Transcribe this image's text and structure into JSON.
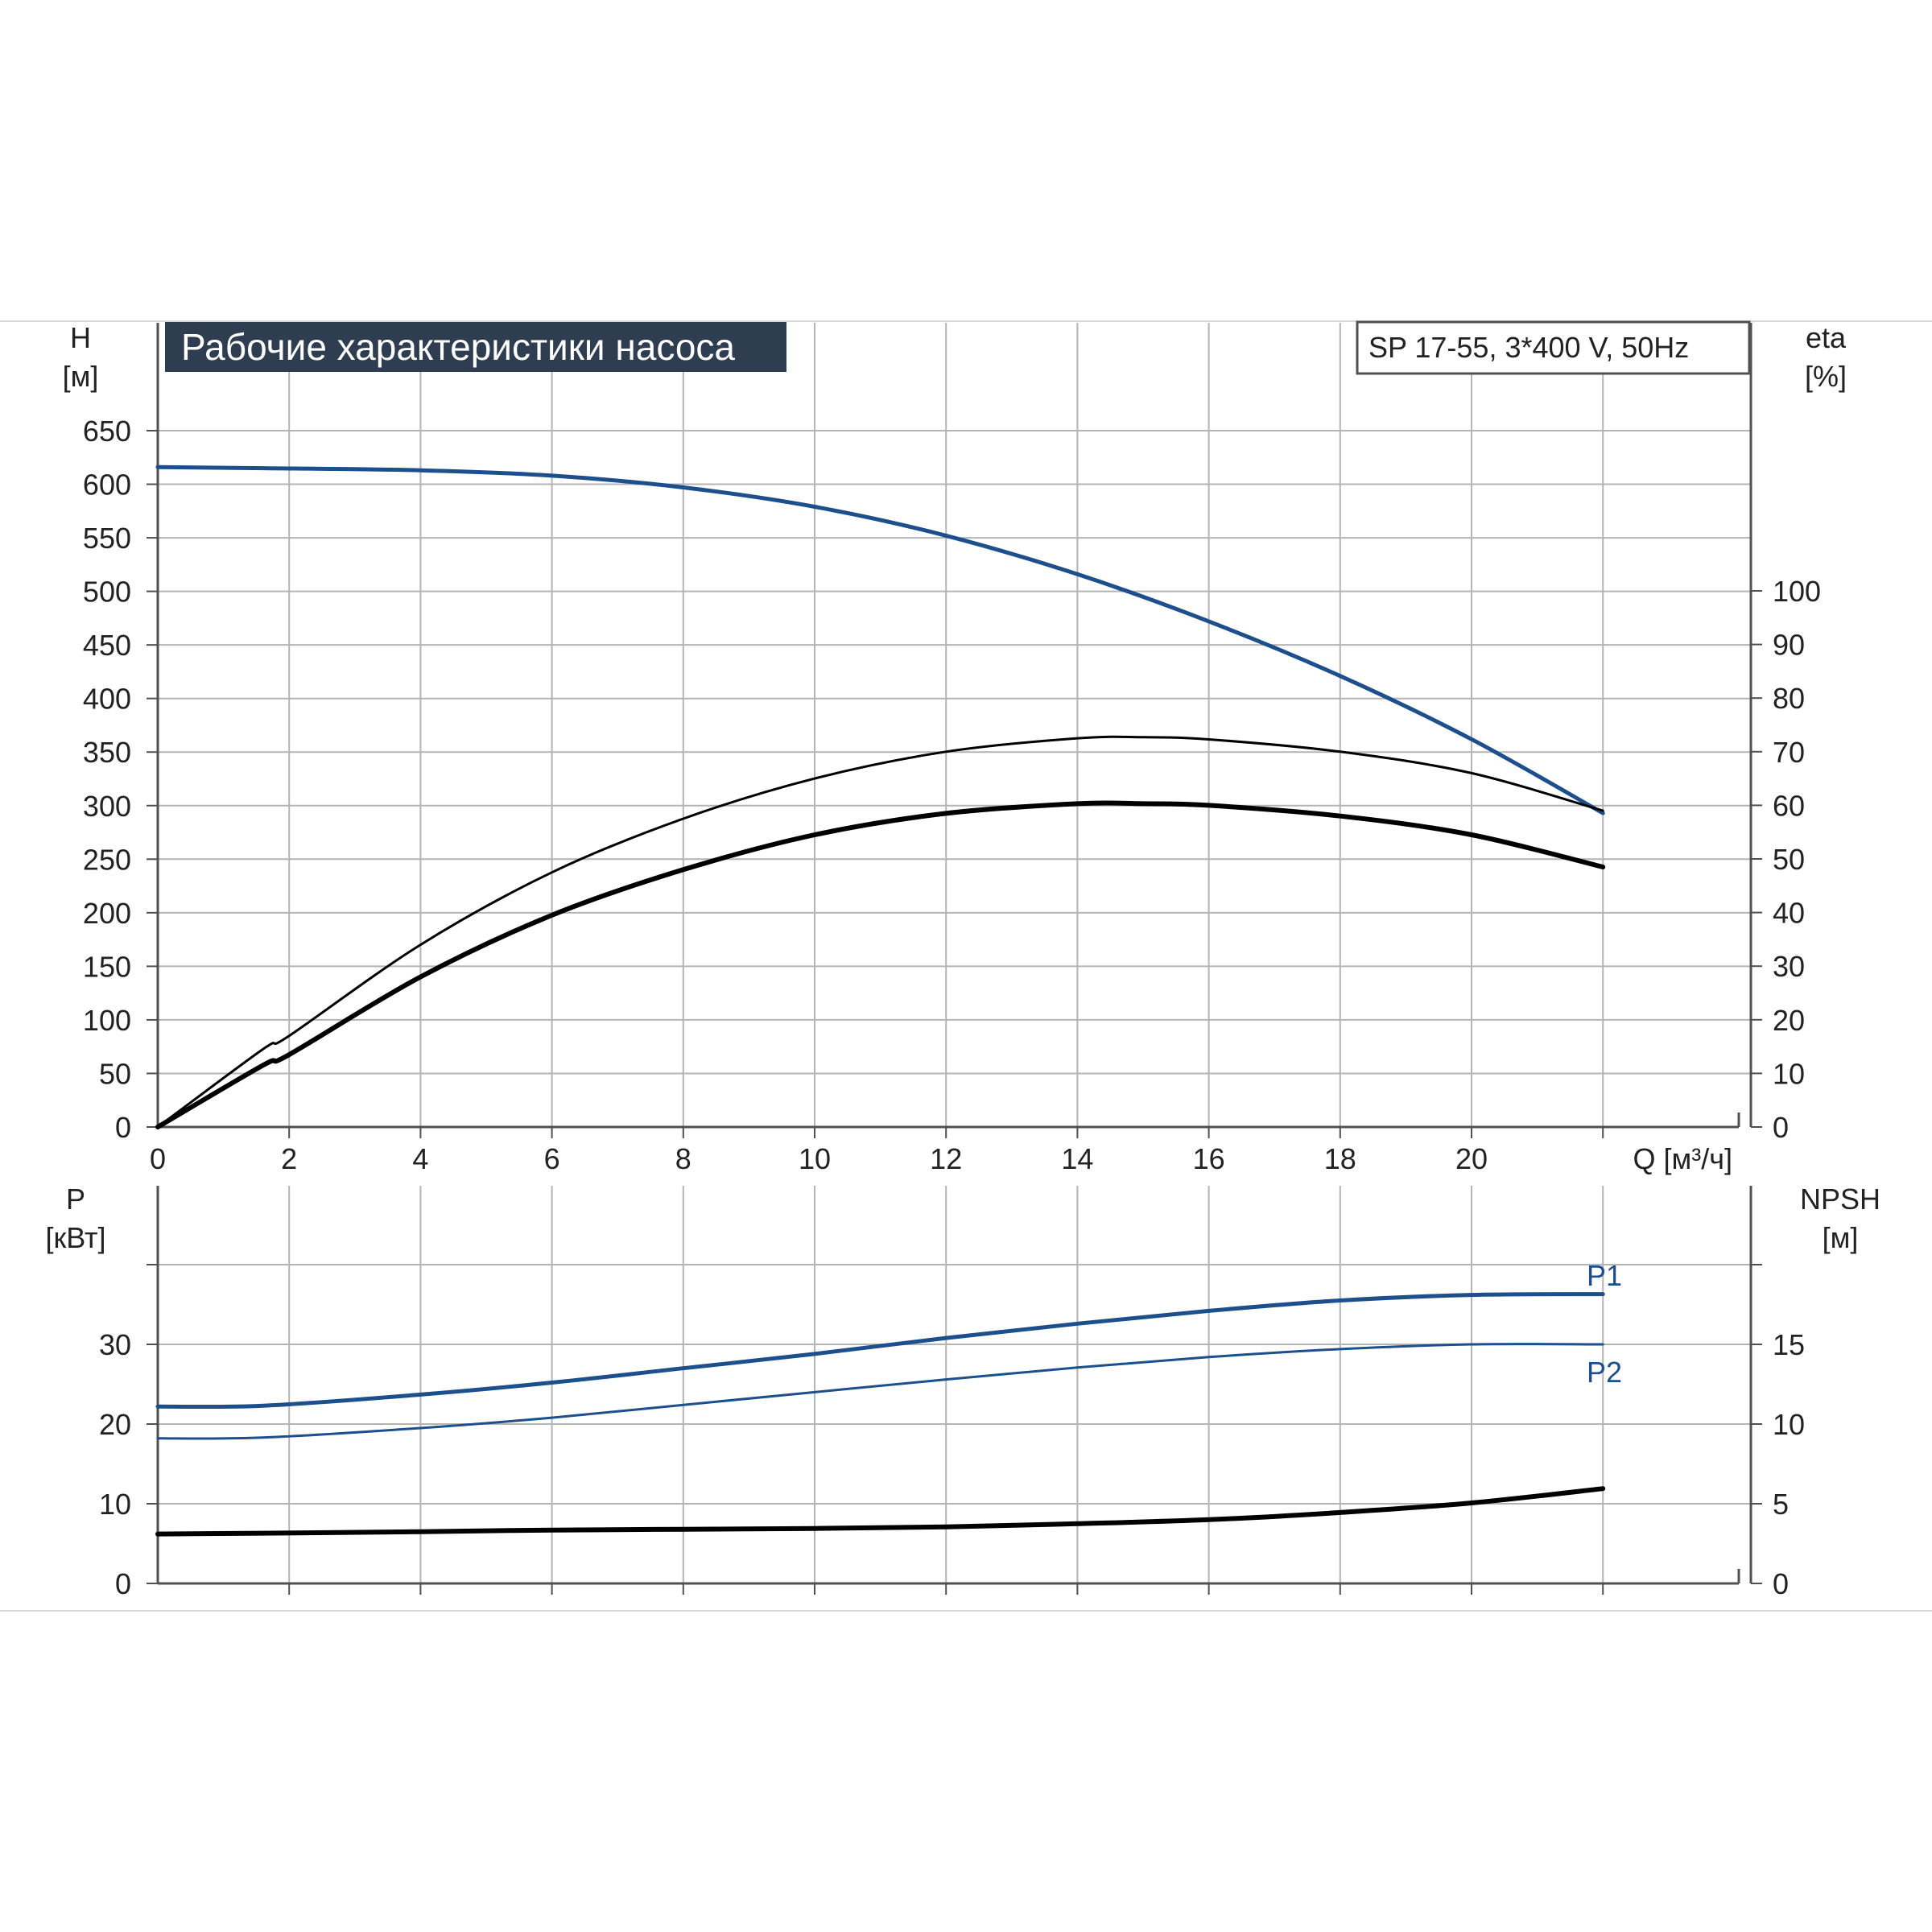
{
  "title": "Рабочие характеристики насоса",
  "model": "SP 17-55, 3*400 V, 50Hz",
  "colors": {
    "title_bg": "#2e3d50",
    "title_fg": "#ffffff",
    "blue": "#1c4f8c",
    "black": "#000000",
    "grid": "#b4b4b4",
    "axis": "#505050"
  },
  "chart_data": [
    {
      "type": "line",
      "title": "Рабочие характеристики насоса",
      "subtitle": "SP 17-55, 3*400 V, 50Hz",
      "xlabel": "Q [м³/ч]",
      "xlim": [
        0,
        24
      ],
      "x_ticks": [
        0,
        2,
        4,
        6,
        8,
        10,
        12,
        14,
        16,
        18,
        20
      ],
      "y_left": {
        "label_top": "H",
        "label_unit": "[м]",
        "lim": [
          0,
          650
        ],
        "ticks": [
          0,
          50,
          100,
          150,
          200,
          250,
          300,
          350,
          400,
          450,
          500,
          550,
          600,
          650
        ]
      },
      "y_right": {
        "label_top": "eta",
        "label_unit": "[%]",
        "lim": [
          0,
          130
        ],
        "ticks": [
          0,
          10,
          20,
          30,
          40,
          50,
          60,
          70,
          80,
          90,
          100
        ]
      },
      "grid": true,
      "series": [
        {
          "axis": "left",
          "color": "blue",
          "width": 5,
          "x": [
            0,
            1.6,
            4,
            6,
            8,
            10,
            12,
            14,
            16,
            18,
            20,
            22
          ],
          "y": [
            616,
            615,
            613,
            608,
            597,
            579,
            552,
            516,
            472,
            421,
            362,
            293
          ]
        },
        {
          "axis": "right",
          "color": "black",
          "width": 3,
          "x": [
            0,
            1.6,
            2,
            4,
            6,
            8,
            10,
            12,
            14,
            15,
            16,
            18,
            20,
            22
          ],
          "y": [
            0,
            14.5,
            17,
            34,
            47.5,
            57.5,
            65,
            70,
            72.5,
            72.7,
            72.3,
            70,
            66,
            59
          ]
        },
        {
          "axis": "right",
          "color": "black",
          "width": 6,
          "x": [
            0,
            1.6,
            2,
            4,
            6,
            8,
            10,
            12,
            14,
            15,
            16,
            18,
            20,
            22
          ],
          "y": [
            0,
            11.5,
            13.5,
            28,
            39.5,
            48,
            54.5,
            58.5,
            60.3,
            60.3,
            60,
            58,
            54.5,
            48.5
          ]
        }
      ]
    },
    {
      "type": "line",
      "xlim": [
        0,
        24
      ],
      "y_left": {
        "label_top": "P",
        "label_unit": "[кВт]",
        "lim": [
          0,
          40
        ],
        "ticks": [
          0,
          10,
          20,
          30
        ]
      },
      "y_right": {
        "label_top": "NPSH",
        "label_unit": "[м]",
        "lim": [
          0,
          20
        ],
        "ticks": [
          0,
          5,
          10,
          15
        ]
      },
      "grid": true,
      "series": [
        {
          "name": "P1",
          "axis": "left",
          "color": "blue",
          "width": 5,
          "x": [
            0,
            1.6,
            4,
            6,
            8,
            10,
            12,
            14,
            16,
            18,
            20,
            22
          ],
          "y": [
            22.2,
            22.3,
            23.7,
            25.2,
            27.0,
            28.8,
            30.8,
            32.6,
            34.2,
            35.5,
            36.2,
            36.3
          ]
        },
        {
          "name": "P2",
          "axis": "left",
          "color": "blue",
          "width": 3,
          "x": [
            0,
            1.6,
            4,
            6,
            8,
            10,
            12,
            14,
            16,
            18,
            20,
            22
          ],
          "y": [
            18.2,
            18.3,
            19.5,
            20.8,
            22.4,
            24.0,
            25.6,
            27.1,
            28.4,
            29.4,
            30.0,
            30.0
          ]
        },
        {
          "axis": "right",
          "color": "black",
          "width": 6,
          "x": [
            0,
            1.6,
            4,
            6,
            8,
            10,
            12,
            14,
            16,
            18,
            20,
            22
          ],
          "y": [
            3.1,
            3.15,
            3.25,
            3.35,
            3.4,
            3.45,
            3.55,
            3.75,
            4.0,
            4.45,
            5.05,
            5.95
          ]
        }
      ]
    }
  ]
}
